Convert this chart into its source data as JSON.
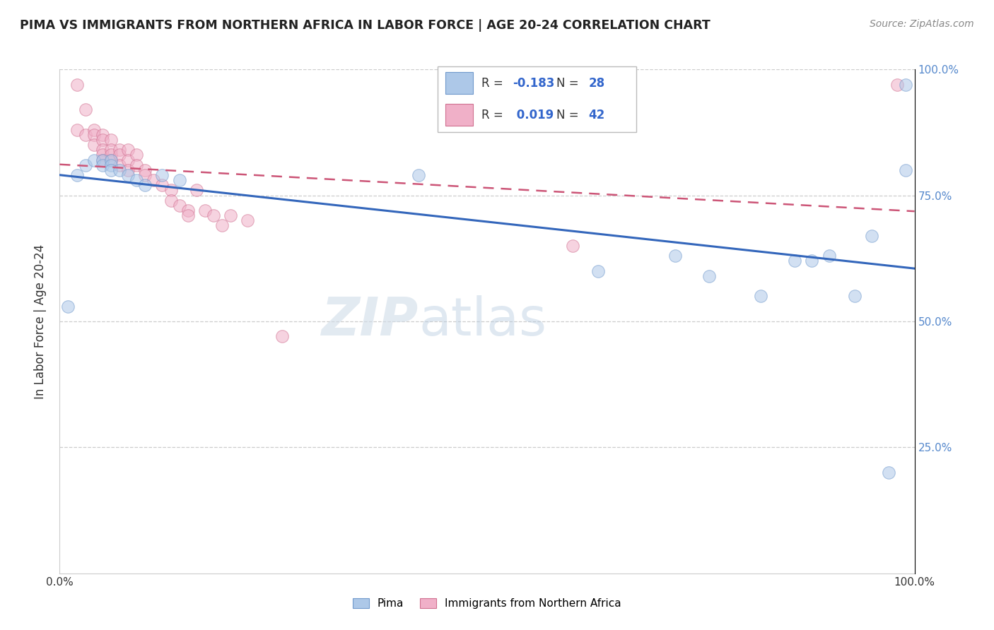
{
  "title": "PIMA VS IMMIGRANTS FROM NORTHERN AFRICA IN LABOR FORCE | AGE 20-24 CORRELATION CHART",
  "source": "Source: ZipAtlas.com",
  "ylabel": "In Labor Force | Age 20-24",
  "xlim": [
    0,
    1.0
  ],
  "ylim": [
    0,
    1.0
  ],
  "pima_color": "#adc8e8",
  "pima_edge_color": "#7099cc",
  "immig_color": "#f0b0c8",
  "immig_edge_color": "#d07090",
  "trend_pima_color": "#3366bb",
  "trend_immig_color": "#cc5577",
  "legend_pima_R": "-0.183",
  "legend_pima_N": "28",
  "legend_immig_R": "0.019",
  "legend_immig_N": "42",
  "pima_x": [
    0.01,
    0.02,
    0.03,
    0.04,
    0.05,
    0.05,
    0.06,
    0.06,
    0.06,
    0.07,
    0.08,
    0.09,
    0.1,
    0.12,
    0.14,
    0.42,
    0.63,
    0.72,
    0.76,
    0.82,
    0.86,
    0.88,
    0.9,
    0.93,
    0.95,
    0.97,
    0.99,
    0.99
  ],
  "pima_y": [
    0.53,
    0.79,
    0.81,
    0.82,
    0.82,
    0.81,
    0.82,
    0.81,
    0.8,
    0.8,
    0.79,
    0.78,
    0.77,
    0.79,
    0.78,
    0.79,
    0.6,
    0.63,
    0.59,
    0.55,
    0.62,
    0.62,
    0.63,
    0.55,
    0.67,
    0.2,
    0.97,
    0.8
  ],
  "immig_x": [
    0.02,
    0.02,
    0.03,
    0.03,
    0.04,
    0.04,
    0.04,
    0.05,
    0.05,
    0.05,
    0.05,
    0.05,
    0.06,
    0.06,
    0.06,
    0.06,
    0.07,
    0.07,
    0.07,
    0.08,
    0.08,
    0.08,
    0.09,
    0.09,
    0.1,
    0.1,
    0.11,
    0.12,
    0.13,
    0.13,
    0.14,
    0.15,
    0.15,
    0.16,
    0.17,
    0.18,
    0.19,
    0.2,
    0.22,
    0.26,
    0.6,
    0.98
  ],
  "immig_y": [
    0.97,
    0.88,
    0.92,
    0.87,
    0.88,
    0.87,
    0.85,
    0.87,
    0.86,
    0.84,
    0.83,
    0.82,
    0.86,
    0.84,
    0.83,
    0.82,
    0.84,
    0.83,
    0.81,
    0.84,
    0.82,
    0.8,
    0.83,
    0.81,
    0.8,
    0.79,
    0.78,
    0.77,
    0.76,
    0.74,
    0.73,
    0.72,
    0.71,
    0.76,
    0.72,
    0.71,
    0.69,
    0.71,
    0.7,
    0.47,
    0.65,
    0.97
  ],
  "marker_size": 160,
  "alpha": 0.55,
  "grid_color": "#cccccc",
  "background_color": "#ffffff",
  "watermark_zip": "ZIP",
  "watermark_atlas": "atlas",
  "right_tick_color": "#5588cc"
}
